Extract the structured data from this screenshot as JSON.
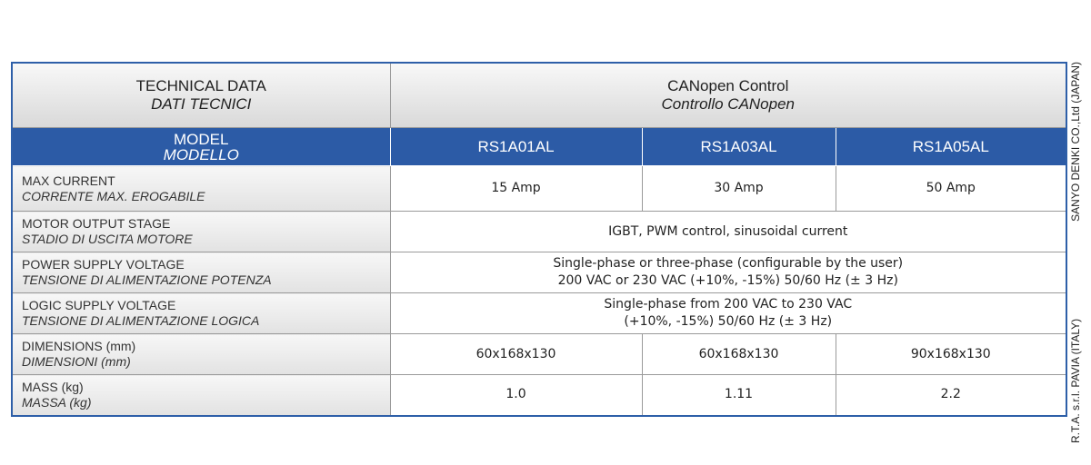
{
  "header": {
    "title": "TECHNICAL DATA",
    "title_it": "DATI TECNICI",
    "control": "CANopen Control",
    "control_it": "Controllo CANopen"
  },
  "model": {
    "label": "MODEL",
    "label_it": "MODELLO",
    "values": [
      "RS1A01AL",
      "RS1A03AL",
      "RS1A05AL"
    ]
  },
  "rows": [
    {
      "label": "MAX CURRENT",
      "label_it": "CORRENTE MAX. EROGABILE",
      "cells": [
        "15 Amp",
        "30 Amp",
        "50 Amp"
      ]
    },
    {
      "label": "MOTOR OUTPUT STAGE",
      "label_it": "STADIO DI USCITA MOTORE",
      "lines": [
        "IGBT, PWM control, sinusoidal current"
      ]
    },
    {
      "label": "POWER SUPPLY VOLTAGE",
      "label_it": "TENSIONE DI ALIMENTAZIONE POTENZA",
      "lines": [
        "Single-phase or three-phase (configurable by the user)",
        "200 VAC or 230 VAC (+10%, -15%) 50/60 Hz (± 3 Hz)"
      ]
    },
    {
      "label": "LOGIC SUPPLY VOLTAGE",
      "label_it": "TENSIONE DI ALIMENTAZIONE LOGICA",
      "lines": [
        "Single-phase from 200 VAC to 230 VAC",
        "(+10%, -15%) 50/60 Hz (± 3 Hz)"
      ]
    },
    {
      "label": "DIMENSIONS (mm)",
      "label_it": "DIMENSIONI (mm)",
      "cells": [
        "60x168x130",
        "60x168x130",
        "90x168x130"
      ]
    },
    {
      "label": "MASS (kg)",
      "label_it": "MASSA (kg)",
      "cells": [
        "1.0",
        "1.11",
        "2.2"
      ]
    }
  ],
  "side_notes": [
    "R.T.A. s.r.l. PAVIA (ITALY)",
    "SANYO DENKI CO.,Ltd (JAPAN)"
  ]
}
